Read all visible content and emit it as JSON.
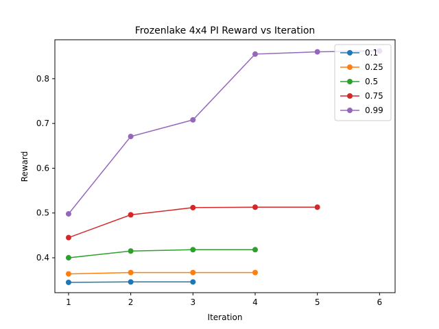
{
  "chart_data": {
    "type": "line",
    "title": "Frozenlake 4x4 PI Reward vs Iteration",
    "xlabel": "Iteration",
    "ylabel": "Reward",
    "xlim": [
      0.78,
      6.25
    ],
    "ylim": [
      0.322,
      0.887
    ],
    "xticks": [
      1,
      2,
      3,
      4,
      5,
      6
    ],
    "yticks": [
      0.4,
      0.5,
      0.6,
      0.7,
      0.8
    ],
    "grid": false,
    "legend_position": "top-right",
    "series": [
      {
        "name": "0.1",
        "color": "#1f77b4",
        "x": [
          1,
          2,
          3
        ],
        "y": [
          0.345,
          0.346,
          0.346
        ]
      },
      {
        "name": "0.25",
        "color": "#ff7f0e",
        "x": [
          1,
          2,
          3,
          4
        ],
        "y": [
          0.364,
          0.367,
          0.367,
          0.367
        ]
      },
      {
        "name": "0.5",
        "color": "#2ca02c",
        "x": [
          1,
          2,
          3,
          4
        ],
        "y": [
          0.4,
          0.415,
          0.418,
          0.418
        ]
      },
      {
        "name": "0.75",
        "color": "#d62728",
        "x": [
          1,
          2,
          3,
          4,
          5
        ],
        "y": [
          0.445,
          0.496,
          0.512,
          0.513,
          0.513
        ]
      },
      {
        "name": "0.99",
        "color": "#9467bd",
        "x": [
          1,
          2,
          3,
          4,
          5,
          6
        ],
        "y": [
          0.498,
          0.671,
          0.708,
          0.855,
          0.86,
          0.862
        ]
      }
    ]
  }
}
